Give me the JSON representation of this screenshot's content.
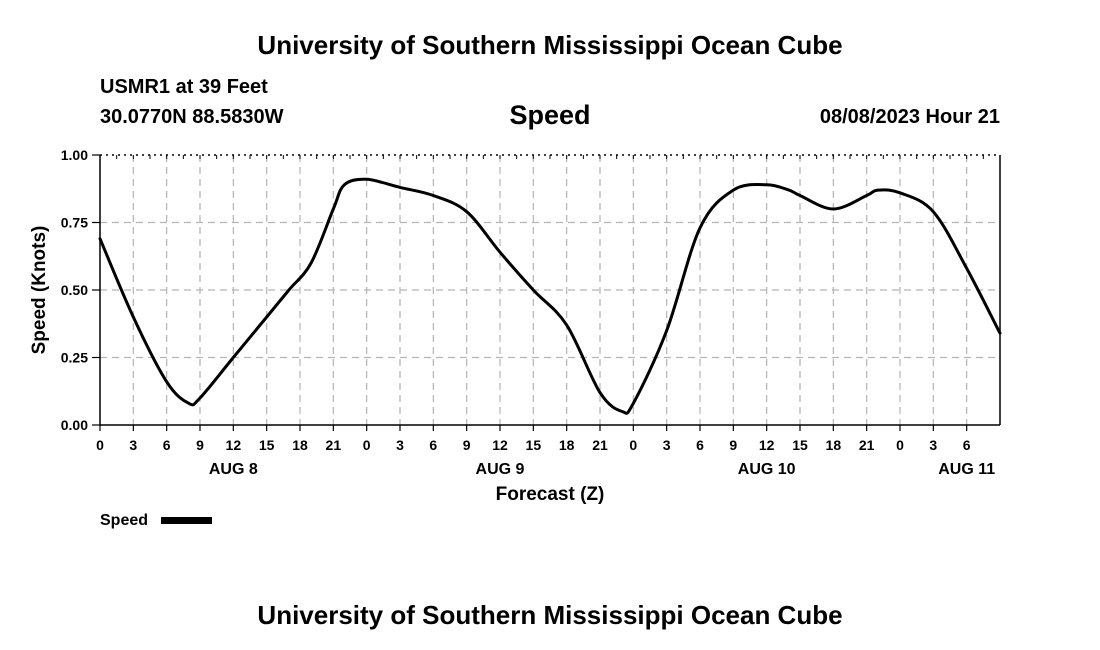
{
  "header": {
    "title": "University of Southern Mississippi Ocean Cube",
    "station": "USMR1 at 39 Feet",
    "location": "30.0770N  88.5830W",
    "variable": "Speed",
    "datetime": "08/08/2023 Hour 21"
  },
  "footer": {
    "title": "University of Southern Mississippi Ocean Cube"
  },
  "chart_data": {
    "type": "line",
    "title": "Speed",
    "xlabel": "Forecast (Z)",
    "ylabel": "Speed (Knots)",
    "ylim": [
      0,
      1
    ],
    "xlim": [
      0,
      81
    ],
    "yticks": [
      "0.00",
      "0.25",
      "0.50",
      "0.75",
      "1.00"
    ],
    "xtick_labels": [
      "0",
      "3",
      "6",
      "9",
      "12",
      "15",
      "18",
      "21",
      "0",
      "3",
      "6",
      "9",
      "12",
      "15",
      "18",
      "21",
      "0",
      "3",
      "6",
      "9",
      "12",
      "15",
      "18",
      "21",
      "0",
      "3",
      "6"
    ],
    "day_labels": [
      {
        "label": "AUG 8",
        "hour": 12
      },
      {
        "label": "AUG 9",
        "hour": 36
      },
      {
        "label": "AUG 10",
        "hour": 60
      },
      {
        "label": "AUG 11",
        "hour": 78
      }
    ],
    "grid": true,
    "legend": "bottom-left",
    "series": [
      {
        "name": "Speed",
        "color": "#000000",
        "x": [
          0,
          3,
          6,
          8,
          9,
          12,
          15,
          17,
          19,
          21,
          22,
          24,
          27,
          30,
          33,
          36,
          39,
          42,
          45,
          47,
          48,
          51,
          54,
          57,
          60,
          62,
          63,
          66,
          69,
          70,
          72,
          75,
          78,
          81
        ],
        "y": [
          0.69,
          0.4,
          0.16,
          0.08,
          0.1,
          0.25,
          0.4,
          0.5,
          0.6,
          0.8,
          0.89,
          0.91,
          0.88,
          0.85,
          0.79,
          0.64,
          0.5,
          0.37,
          0.12,
          0.05,
          0.08,
          0.35,
          0.73,
          0.87,
          0.89,
          0.87,
          0.85,
          0.8,
          0.85,
          0.87,
          0.86,
          0.79,
          0.58,
          0.34
        ]
      }
    ]
  }
}
